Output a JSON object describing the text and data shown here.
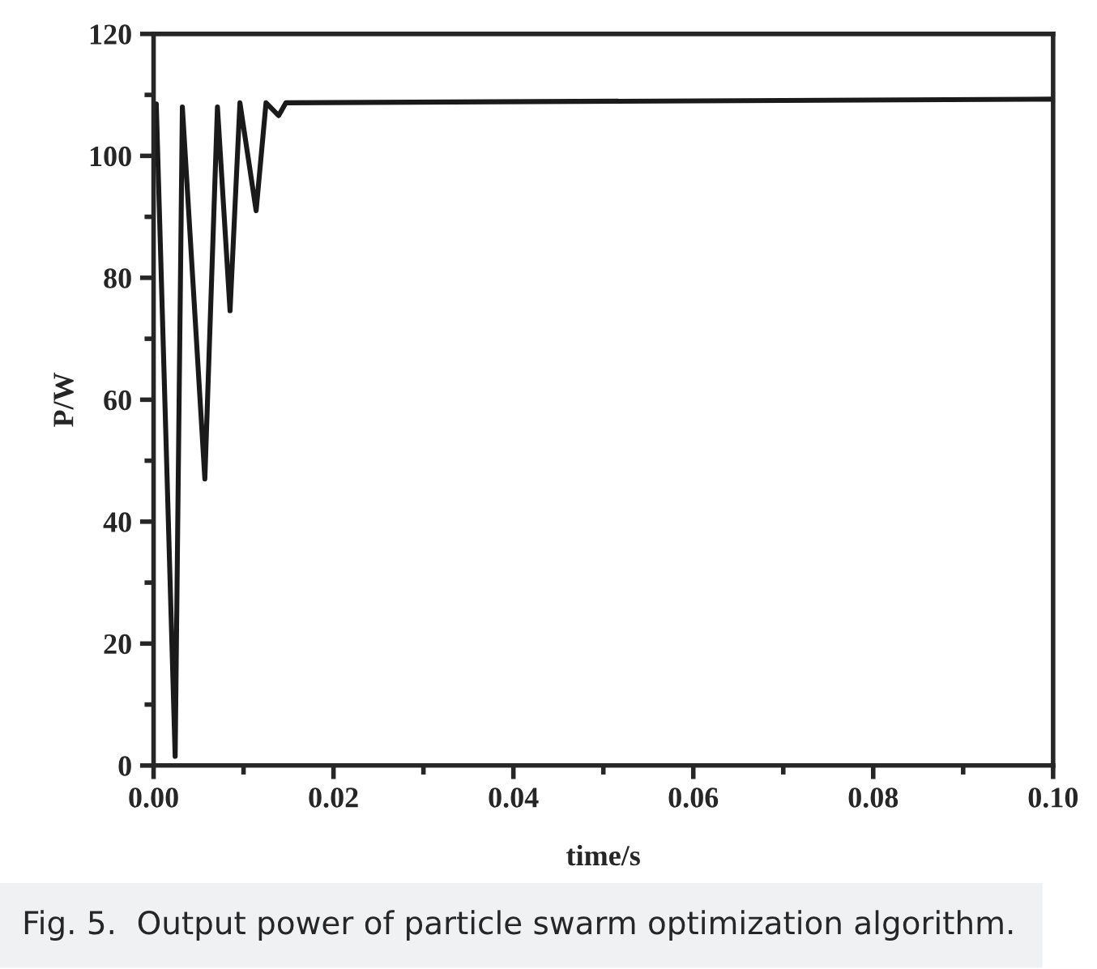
{
  "chart_data": {
    "type": "line",
    "xlabel": "time/s",
    "ylabel": "P/W",
    "x": [
      0,
      0.0003,
      0.0024,
      0.0032,
      0.0057,
      0.0071,
      0.0085,
      0.0096,
      0.0114,
      0.0125,
      0.0139,
      0.0147,
      0.1
    ],
    "series": [
      {
        "color": "#1a1a1a",
        "values": [
          108.5,
          108.5,
          1.5,
          108,
          47,
          108,
          74.6,
          108.7,
          91,
          108.7,
          106.6,
          108.7,
          109.3
        ]
      }
    ],
    "xlim": [
      0,
      0.1
    ],
    "ylim": [
      0,
      120
    ],
    "xticks": [
      {
        "value": 0,
        "label": "0.00"
      },
      {
        "value": 0.02,
        "label": "0.02"
      },
      {
        "value": 0.04,
        "label": "0.04"
      },
      {
        "value": 0.06,
        "label": "0.06"
      },
      {
        "value": 0.08,
        "label": "0.08"
      },
      {
        "value": 0.1,
        "label": "0.10"
      }
    ],
    "yticks": [
      0,
      20,
      40,
      60,
      80,
      100,
      120
    ],
    "grid": false,
    "marker": "none",
    "line_style": "solid",
    "annotations": [
      "Fig. 5.  Output power of particle swarm optimization algorithm."
    ]
  }
}
